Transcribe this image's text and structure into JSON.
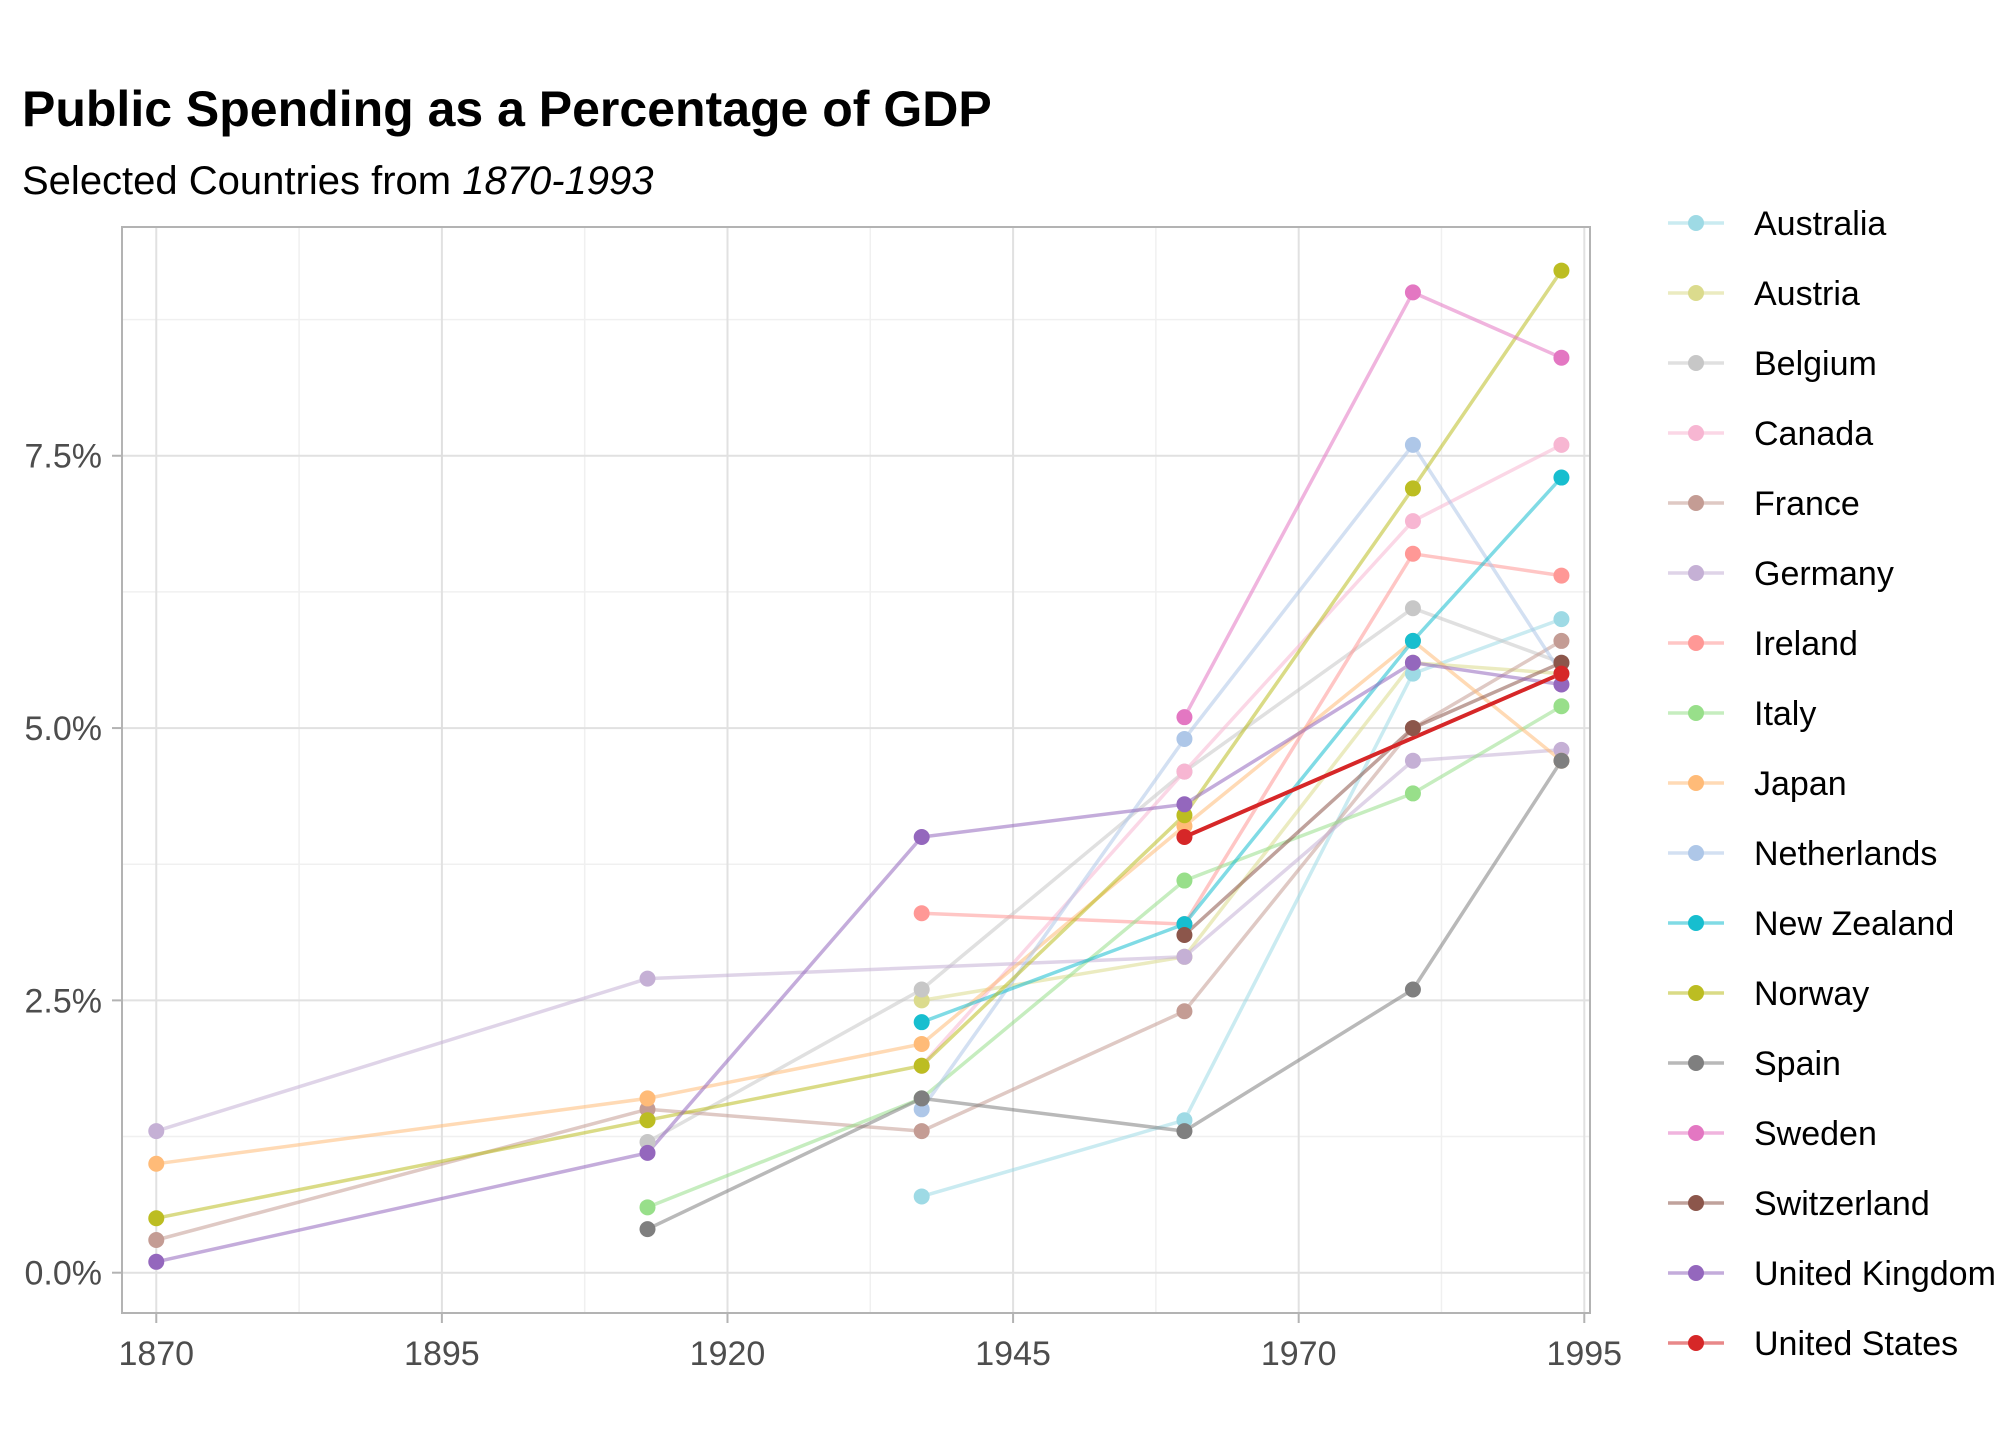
{
  "chart_data": {
    "type": "line",
    "title": "Public Spending as a Percentage of GDP",
    "subtitle_prefix": "Selected Countries from ",
    "subtitle_italic": "1870-1993",
    "xlabel": "",
    "ylabel": "",
    "xlim": [
      1867,
      1995.5
    ],
    "ylim": [
      -0.37,
      9.6
    ],
    "x_ticks": [
      1870,
      1895,
      1920,
      1945,
      1970,
      1995
    ],
    "x_tick_labels": [
      "1870",
      "1895",
      "1920",
      "1945",
      "1970",
      "1995"
    ],
    "y_ticks": [
      0,
      2.5,
      5,
      7.5
    ],
    "y_tick_labels": [
      "0.0%",
      "2.5%",
      "5.0%",
      "7.5%"
    ],
    "grid": true,
    "legend_position": "right",
    "series": [
      {
        "name": "Australia",
        "color": "#9edae5",
        "x": [
          1937,
          1960,
          1980,
          1993
        ],
        "values": [
          0.7,
          1.4,
          5.5,
          6.0
        ]
      },
      {
        "name": "Austria",
        "color": "#dbdb8d",
        "x": [
          1937,
          1960,
          1980,
          1993
        ],
        "values": [
          2.5,
          2.9,
          5.6,
          5.5
        ]
      },
      {
        "name": "Belgium",
        "color": "#c7c7c7",
        "x": [
          1913,
          1937,
          1960,
          1980,
          1993
        ],
        "values": [
          1.2,
          2.6,
          4.6,
          6.1,
          5.6
        ]
      },
      {
        "name": "Canada",
        "color": "#f7b6d2",
        "x": [
          1937,
          1960,
          1980,
          1993
        ],
        "values": [
          1.9,
          4.6,
          6.9,
          7.6
        ]
      },
      {
        "name": "France",
        "color": "#c49c94",
        "x": [
          1870,
          1913,
          1937,
          1960,
          1980,
          1993
        ],
        "values": [
          0.3,
          1.5,
          1.3,
          2.4,
          5.0,
          5.8
        ]
      },
      {
        "name": "Germany",
        "color": "#c5b0d5",
        "x": [
          1870,
          1913,
          1960,
          1980,
          1993
        ],
        "values": [
          1.3,
          2.7,
          2.9,
          4.7,
          4.8
        ]
      },
      {
        "name": "Ireland",
        "color": "#ff9896",
        "x": [
          1937,
          1960,
          1980,
          1993
        ],
        "values": [
          3.3,
          3.2,
          6.6,
          6.4
        ]
      },
      {
        "name": "Italy",
        "color": "#98df8a",
        "x": [
          1913,
          1937,
          1960,
          1980,
          1993
        ],
        "values": [
          0.6,
          1.6,
          3.6,
          4.4,
          5.2
        ]
      },
      {
        "name": "Japan",
        "color": "#ffbb78",
        "x": [
          1870,
          1913,
          1937,
          1960,
          1980,
          1993
        ],
        "values": [
          1.0,
          1.6,
          2.1,
          4.1,
          5.8,
          4.7
        ]
      },
      {
        "name": "Netherlands",
        "color": "#aec7e8",
        "x": [
          1937,
          1960,
          1980,
          1993
        ],
        "values": [
          1.5,
          4.9,
          7.6,
          5.5
        ]
      },
      {
        "name": "New Zealand",
        "color": "#17becf",
        "x": [
          1937,
          1960,
          1980,
          1993
        ],
        "values": [
          2.3,
          3.2,
          5.8,
          7.3
        ]
      },
      {
        "name": "Norway",
        "color": "#bcbd22",
        "x": [
          1870,
          1913,
          1937,
          1960,
          1980,
          1993
        ],
        "values": [
          0.5,
          1.4,
          1.9,
          4.2,
          7.2,
          9.2
        ]
      },
      {
        "name": "Spain",
        "color": "#7f7f7f",
        "x": [
          1913,
          1937,
          1960,
          1980,
          1993
        ],
        "values": [
          0.4,
          1.6,
          1.3,
          2.6,
          4.7
        ]
      },
      {
        "name": "Sweden",
        "color": "#e377c2",
        "x": [
          1960,
          1980,
          1993
        ],
        "values": [
          5.1,
          9.0,
          8.4
        ]
      },
      {
        "name": "Switzerland",
        "color": "#8c564b",
        "x": [
          1960,
          1980,
          1993
        ],
        "values": [
          3.1,
          5.0,
          5.6
        ]
      },
      {
        "name": "United Kingdom",
        "color": "#9467bd",
        "x": [
          1870,
          1913,
          1937,
          1960,
          1980,
          1993
        ],
        "values": [
          0.1,
          1.1,
          4.0,
          4.3,
          5.6,
          5.4
        ]
      },
      {
        "name": "United States",
        "color": "#d62728",
        "x": [
          1960,
          1993
        ],
        "values": [
          4.0,
          5.5
        ]
      }
    ]
  }
}
